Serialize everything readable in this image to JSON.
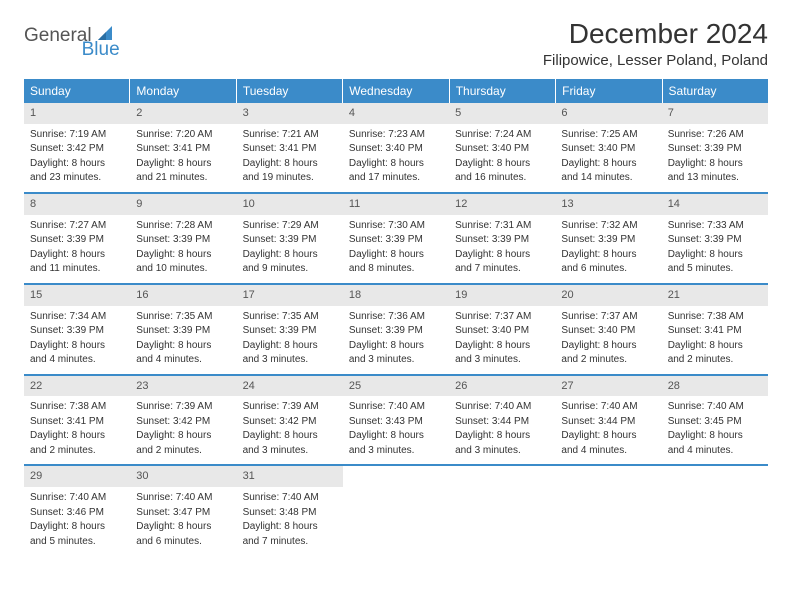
{
  "logo": {
    "text1": "General",
    "text2": "Blue"
  },
  "title": "December 2024",
  "location": "Filipowice, Lesser Poland, Poland",
  "colors": {
    "header_bg": "#3b8bc9",
    "daynum_bg": "#e8e8e8",
    "text": "#333333",
    "logo_gray": "#555555",
    "logo_blue": "#3b8bc9",
    "background": "#ffffff"
  },
  "day_headers": [
    "Sunday",
    "Monday",
    "Tuesday",
    "Wednesday",
    "Thursday",
    "Friday",
    "Saturday"
  ],
  "weeks": [
    [
      {
        "n": "1",
        "sr": "Sunrise: 7:19 AM",
        "ss": "Sunset: 3:42 PM",
        "d1": "Daylight: 8 hours",
        "d2": "and 23 minutes."
      },
      {
        "n": "2",
        "sr": "Sunrise: 7:20 AM",
        "ss": "Sunset: 3:41 PM",
        "d1": "Daylight: 8 hours",
        "d2": "and 21 minutes."
      },
      {
        "n": "3",
        "sr": "Sunrise: 7:21 AM",
        "ss": "Sunset: 3:41 PM",
        "d1": "Daylight: 8 hours",
        "d2": "and 19 minutes."
      },
      {
        "n": "4",
        "sr": "Sunrise: 7:23 AM",
        "ss": "Sunset: 3:40 PM",
        "d1": "Daylight: 8 hours",
        "d2": "and 17 minutes."
      },
      {
        "n": "5",
        "sr": "Sunrise: 7:24 AM",
        "ss": "Sunset: 3:40 PM",
        "d1": "Daylight: 8 hours",
        "d2": "and 16 minutes."
      },
      {
        "n": "6",
        "sr": "Sunrise: 7:25 AM",
        "ss": "Sunset: 3:40 PM",
        "d1": "Daylight: 8 hours",
        "d2": "and 14 minutes."
      },
      {
        "n": "7",
        "sr": "Sunrise: 7:26 AM",
        "ss": "Sunset: 3:39 PM",
        "d1": "Daylight: 8 hours",
        "d2": "and 13 minutes."
      }
    ],
    [
      {
        "n": "8",
        "sr": "Sunrise: 7:27 AM",
        "ss": "Sunset: 3:39 PM",
        "d1": "Daylight: 8 hours",
        "d2": "and 11 minutes."
      },
      {
        "n": "9",
        "sr": "Sunrise: 7:28 AM",
        "ss": "Sunset: 3:39 PM",
        "d1": "Daylight: 8 hours",
        "d2": "and 10 minutes."
      },
      {
        "n": "10",
        "sr": "Sunrise: 7:29 AM",
        "ss": "Sunset: 3:39 PM",
        "d1": "Daylight: 8 hours",
        "d2": "and 9 minutes."
      },
      {
        "n": "11",
        "sr": "Sunrise: 7:30 AM",
        "ss": "Sunset: 3:39 PM",
        "d1": "Daylight: 8 hours",
        "d2": "and 8 minutes."
      },
      {
        "n": "12",
        "sr": "Sunrise: 7:31 AM",
        "ss": "Sunset: 3:39 PM",
        "d1": "Daylight: 8 hours",
        "d2": "and 7 minutes."
      },
      {
        "n": "13",
        "sr": "Sunrise: 7:32 AM",
        "ss": "Sunset: 3:39 PM",
        "d1": "Daylight: 8 hours",
        "d2": "and 6 minutes."
      },
      {
        "n": "14",
        "sr": "Sunrise: 7:33 AM",
        "ss": "Sunset: 3:39 PM",
        "d1": "Daylight: 8 hours",
        "d2": "and 5 minutes."
      }
    ],
    [
      {
        "n": "15",
        "sr": "Sunrise: 7:34 AM",
        "ss": "Sunset: 3:39 PM",
        "d1": "Daylight: 8 hours",
        "d2": "and 4 minutes."
      },
      {
        "n": "16",
        "sr": "Sunrise: 7:35 AM",
        "ss": "Sunset: 3:39 PM",
        "d1": "Daylight: 8 hours",
        "d2": "and 4 minutes."
      },
      {
        "n": "17",
        "sr": "Sunrise: 7:35 AM",
        "ss": "Sunset: 3:39 PM",
        "d1": "Daylight: 8 hours",
        "d2": "and 3 minutes."
      },
      {
        "n": "18",
        "sr": "Sunrise: 7:36 AM",
        "ss": "Sunset: 3:39 PM",
        "d1": "Daylight: 8 hours",
        "d2": "and 3 minutes."
      },
      {
        "n": "19",
        "sr": "Sunrise: 7:37 AM",
        "ss": "Sunset: 3:40 PM",
        "d1": "Daylight: 8 hours",
        "d2": "and 3 minutes."
      },
      {
        "n": "20",
        "sr": "Sunrise: 7:37 AM",
        "ss": "Sunset: 3:40 PM",
        "d1": "Daylight: 8 hours",
        "d2": "and 2 minutes."
      },
      {
        "n": "21",
        "sr": "Sunrise: 7:38 AM",
        "ss": "Sunset: 3:41 PM",
        "d1": "Daylight: 8 hours",
        "d2": "and 2 minutes."
      }
    ],
    [
      {
        "n": "22",
        "sr": "Sunrise: 7:38 AM",
        "ss": "Sunset: 3:41 PM",
        "d1": "Daylight: 8 hours",
        "d2": "and 2 minutes."
      },
      {
        "n": "23",
        "sr": "Sunrise: 7:39 AM",
        "ss": "Sunset: 3:42 PM",
        "d1": "Daylight: 8 hours",
        "d2": "and 2 minutes."
      },
      {
        "n": "24",
        "sr": "Sunrise: 7:39 AM",
        "ss": "Sunset: 3:42 PM",
        "d1": "Daylight: 8 hours",
        "d2": "and 3 minutes."
      },
      {
        "n": "25",
        "sr": "Sunrise: 7:40 AM",
        "ss": "Sunset: 3:43 PM",
        "d1": "Daylight: 8 hours",
        "d2": "and 3 minutes."
      },
      {
        "n": "26",
        "sr": "Sunrise: 7:40 AM",
        "ss": "Sunset: 3:44 PM",
        "d1": "Daylight: 8 hours",
        "d2": "and 3 minutes."
      },
      {
        "n": "27",
        "sr": "Sunrise: 7:40 AM",
        "ss": "Sunset: 3:44 PM",
        "d1": "Daylight: 8 hours",
        "d2": "and 4 minutes."
      },
      {
        "n": "28",
        "sr": "Sunrise: 7:40 AM",
        "ss": "Sunset: 3:45 PM",
        "d1": "Daylight: 8 hours",
        "d2": "and 4 minutes."
      }
    ],
    [
      {
        "n": "29",
        "sr": "Sunrise: 7:40 AM",
        "ss": "Sunset: 3:46 PM",
        "d1": "Daylight: 8 hours",
        "d2": "and 5 minutes."
      },
      {
        "n": "30",
        "sr": "Sunrise: 7:40 AM",
        "ss": "Sunset: 3:47 PM",
        "d1": "Daylight: 8 hours",
        "d2": "and 6 minutes."
      },
      {
        "n": "31",
        "sr": "Sunrise: 7:40 AM",
        "ss": "Sunset: 3:48 PM",
        "d1": "Daylight: 8 hours",
        "d2": "and 7 minutes."
      },
      null,
      null,
      null,
      null
    ]
  ]
}
